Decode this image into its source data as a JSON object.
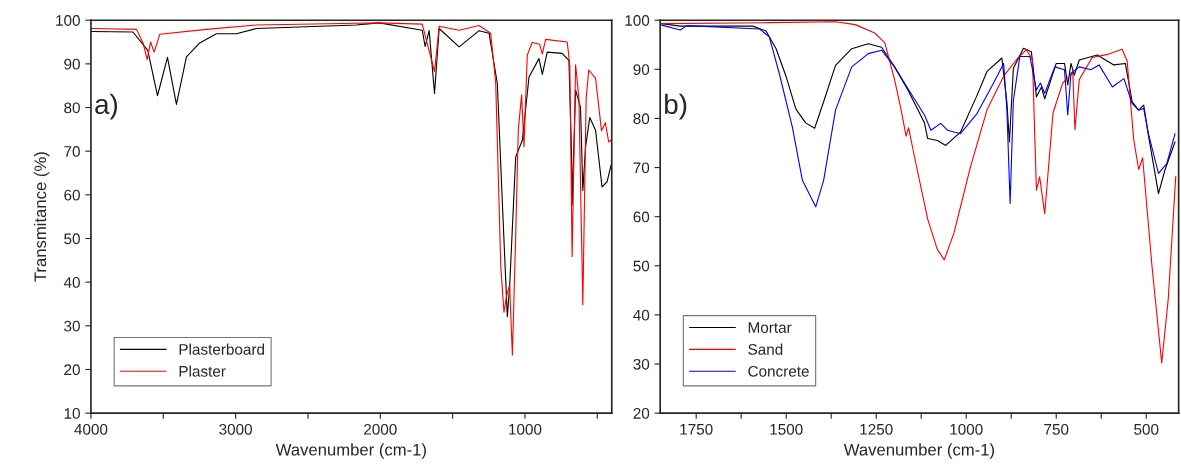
{
  "chart_data": [
    {
      "type": "line",
      "xlabel": "Wavenumber (cm-1)",
      "ylabel": "Transmitance (%)",
      "annotations": [
        "a)"
      ],
      "legend": "bottom left",
      "grid": false,
      "xlim": [
        4000,
        400
      ],
      "ylim": [
        10,
        100
      ],
      "xticks": [
        4000,
        {
          "value": 3500,
          "label": null
        },
        3000,
        {
          "value": 2500,
          "label": null
        },
        2000,
        {
          "value": 1500,
          "label": null
        },
        1000,
        {
          "value": 500,
          "label": null
        }
      ],
      "yticks": [
        10,
        20,
        30,
        40,
        50,
        60,
        70,
        80,
        90,
        100
      ],
      "series": [
        {
          "name": "Plasterboard",
          "color": "#000000",
          "x": [
            4000,
            3710,
            3607,
            3540,
            3471,
            3409,
            3340,
            3248,
            3133,
            2995,
            2857,
            2167,
            2007,
            1710,
            1690,
            1662,
            1625,
            1593,
            1455,
            1317,
            1248,
            1191,
            1152,
            1122,
            1106,
            1064,
            1018,
            972,
            903,
            880,
            846,
            743,
            696,
            678,
            674,
            650,
            616,
            600,
            581,
            552,
            512,
            467,
            432,
            405
          ],
          "values": [
            97.4,
            97.3,
            93.1,
            82.7,
            91.5,
            80.7,
            91.6,
            94.8,
            96.9,
            96.9,
            98.1,
            98.9,
            99.4,
            97.7,
            94.0,
            97.6,
            83.2,
            98.1,
            93.9,
            97.6,
            97.0,
            85.5,
            55.0,
            32.1,
            38.9,
            68.7,
            72.5,
            87.0,
            91.2,
            87.6,
            92.7,
            92.4,
            90.8,
            69.5,
            57.6,
            84.0,
            80.1,
            61.0,
            71.0,
            77.7,
            74.8,
            61.8,
            63.0,
            66.8
          ]
        },
        {
          "name": "Plaster",
          "color": "#ff0000",
          "x": [
            4000,
            3685,
            3639,
            3611,
            3588,
            3563,
            3524,
            3202,
            2857,
            2167,
            2007,
            1710,
            1625,
            1593,
            1455,
            1317,
            1237,
            1202,
            1167,
            1145,
            1127,
            1106,
            1087,
            1064,
            1046,
            1023,
            1007,
            984,
            950,
            899,
            880,
            857,
            708,
            690,
            674,
            650,
            627,
            600,
            577,
            559,
            512,
            471,
            444,
            421,
            405
          ],
          "values": [
            98.1,
            97.9,
            94.7,
            91.0,
            95.0,
            92.7,
            96.8,
            97.9,
            98.9,
            99.3,
            99.4,
            99.1,
            88.2,
            98.6,
            97.7,
            98.8,
            97.0,
            85.5,
            43.5,
            33.1,
            36.9,
            39.3,
            23.3,
            50.6,
            75.0,
            82.9,
            71.0,
            92.0,
            94.9,
            94.5,
            92.3,
            95.6,
            95.0,
            89.8,
            45.9,
            89.8,
            82.1,
            34.8,
            82.1,
            88.6,
            86.7,
            74.7,
            76.5,
            72.1,
            72.5
          ]
        }
      ]
    },
    {
      "type": "line",
      "xlabel": "Wavenumber (cm-1)",
      "annotations": [
        "b)"
      ],
      "legend": "bottom left",
      "grid": false,
      "xlim": [
        1850,
        410
      ],
      "ylim": [
        20,
        100
      ],
      "xticks": [
        {
          "value": 1625,
          "label": null
        },
        1750,
        1500,
        {
          "value": 1375,
          "label": null
        },
        1250,
        {
          "value": 1125,
          "label": null
        },
        1000,
        {
          "value": 875,
          "label": null
        },
        750,
        {
          "value": 625,
          "label": null
        },
        500
      ],
      "yticks": [
        20,
        30,
        40,
        50,
        60,
        70,
        80,
        90,
        100
      ],
      "series": [
        {
          "name": "Mortar",
          "color": "#000000",
          "x": [
            1846,
            1794,
            1593,
            1556,
            1528,
            1501,
            1473,
            1446,
            1421,
            1396,
            1363,
            1318,
            1272,
            1235,
            1199,
            1162,
            1116,
            1107,
            1080,
            1057,
            1016,
            970,
            942,
            901,
            887,
            880,
            869,
            841,
            819,
            805,
            791,
            782,
            750,
            727,
            718,
            709,
            700,
            686,
            636,
            590,
            558,
            539,
            521,
            507,
            494,
            466,
            448,
            420
          ],
          "values": [
            99.3,
            98.8,
            98.8,
            97.8,
            94.2,
            88.7,
            81.9,
            79.1,
            78.0,
            83.4,
            90.8,
            94.2,
            95.2,
            94.5,
            90.5,
            85.8,
            79.1,
            75.9,
            75.5,
            74.5,
            77.2,
            84.7,
            89.6,
            92.3,
            83.3,
            75.2,
            90.2,
            94.3,
            93.6,
            84.4,
            86.4,
            84.0,
            91.2,
            91.2,
            86.8,
            91.2,
            88.8,
            91.9,
            92.9,
            90.9,
            91.2,
            83.4,
            81.7,
            82.7,
            76.6,
            64.7,
            69.5,
            75.2
          ]
        },
        {
          "name": "Sand",
          "color": "#ff0000",
          "x": [
            1846,
            1547,
            1363,
            1308,
            1254,
            1226,
            1199,
            1181,
            1167,
            1160,
            1144,
            1107,
            1080,
            1061,
            1034,
            988,
            942,
            896,
            860,
            833,
            816,
            805,
            796,
            782,
            759,
            732,
            704,
            698,
            686,
            650,
            604,
            567,
            553,
            535,
            521,
            510,
            484,
            457,
            439,
            418
          ],
          "values": [
            99.3,
            99.5,
            99.7,
            99.1,
            97.4,
            95.4,
            87.9,
            81.8,
            76.4,
            78.1,
            72.3,
            59.5,
            53.3,
            51.2,
            56.7,
            70.2,
            81.8,
            88.6,
            92.0,
            94.0,
            92.0,
            65.4,
            68.1,
            60.6,
            81.1,
            87.2,
            89.3,
            77.7,
            87.9,
            92.4,
            93.1,
            94.1,
            91.7,
            75.8,
            69.6,
            72.0,
            49.9,
            30.2,
            43.1,
            68.2
          ]
        },
        {
          "name": "Concrete",
          "color": "#0000ff",
          "x": [
            1846,
            1794,
            1776,
            1574,
            1547,
            1519,
            1483,
            1455,
            1418,
            1396,
            1363,
            1318,
            1272,
            1235,
            1199,
            1162,
            1116,
            1098,
            1071,
            1052,
            1016,
            970,
            924,
            896,
            887,
            878,
            869,
            851,
            823,
            805,
            794,
            782,
            754,
            727,
            718,
            709,
            686,
            654,
            631,
            594,
            562,
            539,
            521,
            507,
            494,
            466,
            443,
            420
          ],
          "values": [
            99.0,
            98.0,
            98.9,
            98.2,
            96.6,
            89.1,
            78.3,
            67.4,
            62.0,
            67.4,
            81.7,
            90.5,
            93.2,
            93.9,
            90.5,
            86.1,
            80.7,
            77.6,
            79.0,
            77.6,
            76.9,
            81.0,
            87.2,
            91.2,
            81.7,
            62.7,
            83.7,
            92.6,
            92.6,
            85.8,
            87.2,
            85.1,
            90.5,
            89.9,
            80.7,
            89.2,
            90.5,
            89.9,
            90.9,
            86.4,
            88.1,
            83.0,
            81.7,
            82.0,
            76.9,
            68.8,
            70.8,
            76.9
          ]
        }
      ]
    }
  ]
}
